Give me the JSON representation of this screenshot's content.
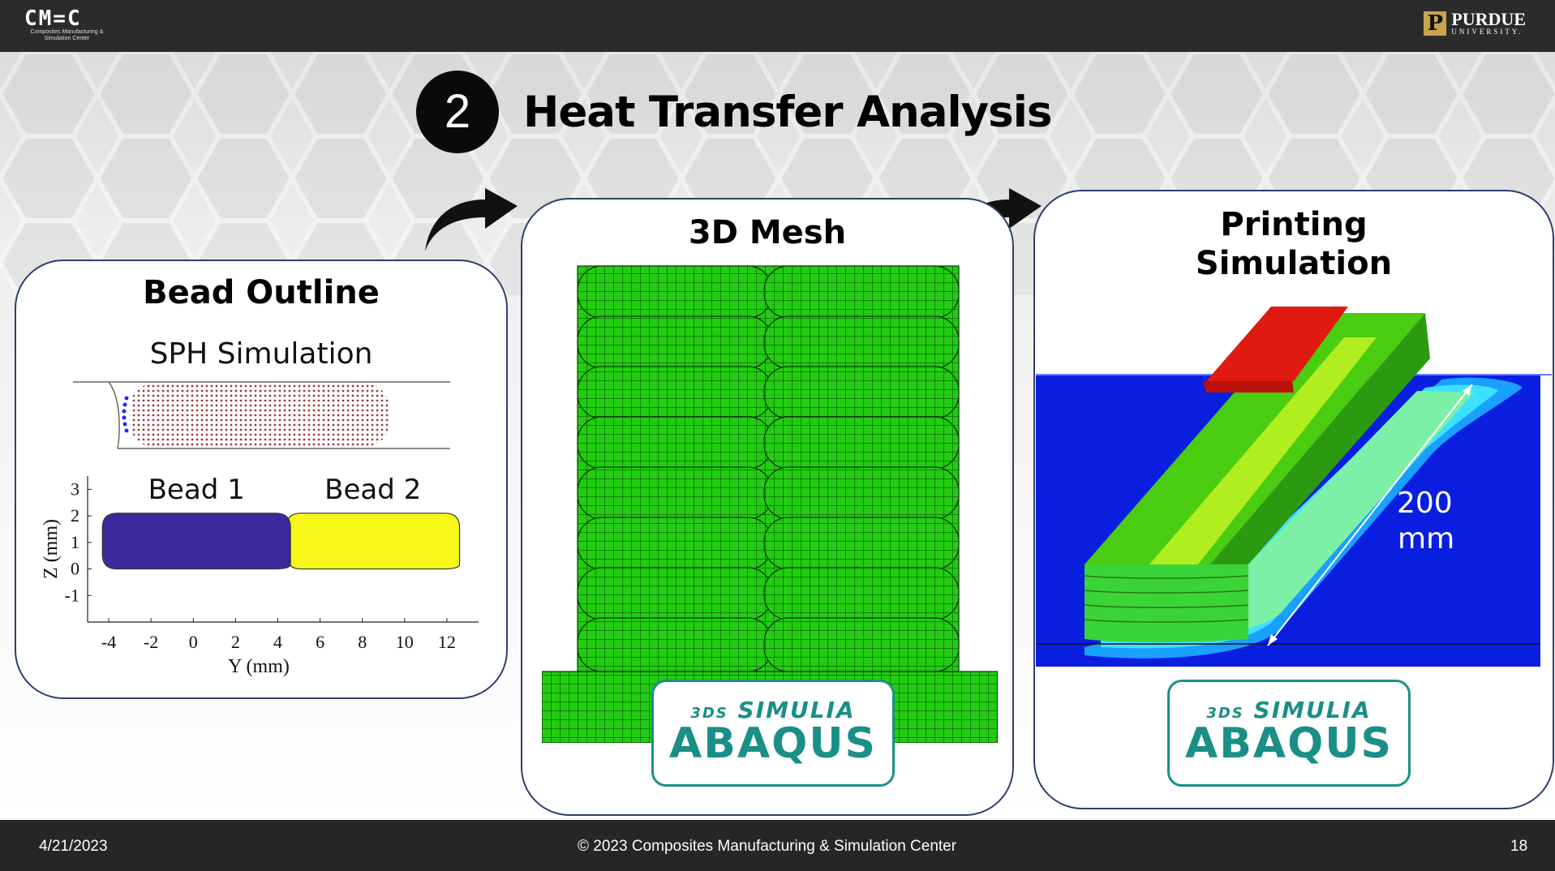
{
  "header": {
    "left_logo": "CM=C",
    "left_logo_sub": "Composites Manufacturing & Simulation Center",
    "right_logo_p": "P",
    "right_logo_name": "PURDUE",
    "right_logo_sub": "UNIVERSITY."
  },
  "title": {
    "step": "2",
    "text": "Heat Transfer Analysis"
  },
  "panel1": {
    "title": "Bead Outline",
    "subtitle": "SPH Simulation",
    "chart_data": {
      "type": "area",
      "series": [
        {
          "name": "Bead 1",
          "color": "#3a2a9e"
        },
        {
          "name": "Bead 2",
          "color": "#f7f71a"
        }
      ],
      "xlabel": "Y (mm)",
      "ylabel": "Z (mm)",
      "xticks": [
        "-4",
        "-2",
        "0",
        "2",
        "4",
        "6",
        "8",
        "10",
        "12"
      ],
      "yticks": [
        "3",
        "2",
        "1",
        "0",
        "-1"
      ],
      "xlim": [
        -5,
        13.5
      ],
      "ylim": [
        -2,
        3.5
      ],
      "bead1": {
        "ymin": -4.3,
        "ymax": 4.6,
        "zmin": 0,
        "zmax": 2.1
      },
      "bead2": {
        "ymin": 4.4,
        "ymax": 12.6,
        "zmin": 0,
        "zmax": 2.1
      }
    }
  },
  "panel2": {
    "title": "3D Mesh"
  },
  "panel3": {
    "title_line1": "Printing",
    "title_line2": "Simulation",
    "dim_value": "200",
    "dim_unit": "mm"
  },
  "badge": {
    "brand": "SIMULIA",
    "product": "ABAQUS",
    "mark": "3DS"
  },
  "footer": {
    "date": "4/21/2023",
    "copyright": "© 2023 Composites Manufacturing & Simulation Center",
    "page": "18"
  },
  "colors": {
    "mesh_green": "#22cc11",
    "panel_border": "#2e3f6f",
    "abaqus_teal": "#1a8f87"
  }
}
